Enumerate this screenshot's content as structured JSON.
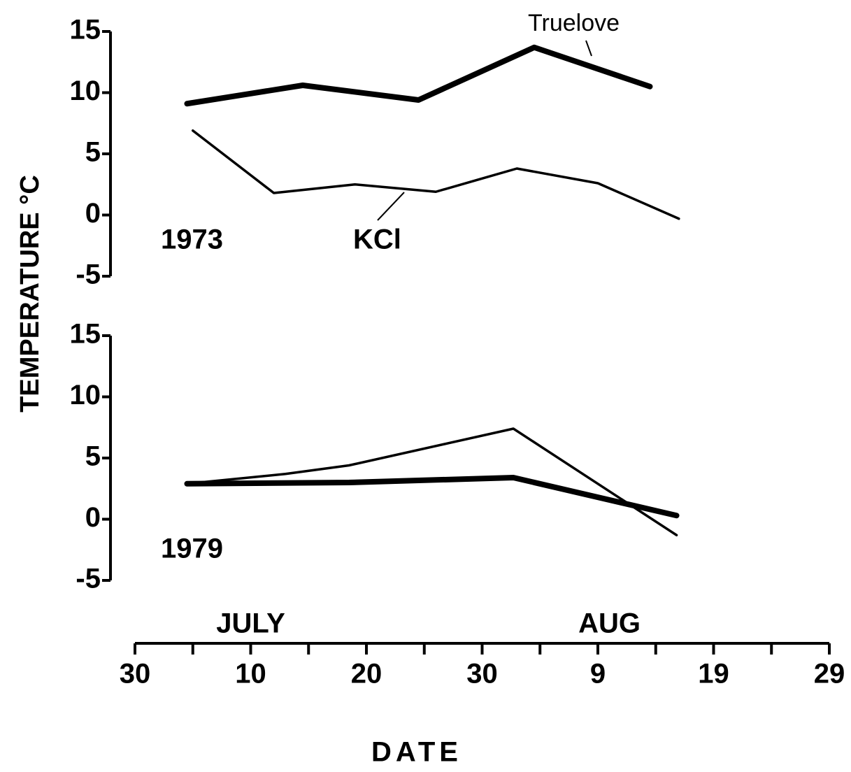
{
  "chart_data": [
    {
      "type": "line",
      "label": "1973",
      "ylabel": "TEMPERATURE °C",
      "ylim": [
        -5,
        15
      ],
      "yticks": [
        15,
        10,
        5,
        0,
        -5
      ],
      "series": [
        {
          "name": "Truelove",
          "color": "#000000",
          "width": "thick",
          "x": [
            4.5,
            14.5,
            24.5,
            34.5,
            44.5
          ],
          "values": [
            9.1,
            10.6,
            9.4,
            13.7,
            10.5
          ]
        },
        {
          "name": "KCl",
          "color": "#000000",
          "width": "thin",
          "x": [
            5,
            12,
            19,
            26,
            33,
            40,
            47
          ],
          "values": [
            6.9,
            1.8,
            2.5,
            1.9,
            3.8,
            2.6,
            -0.3
          ]
        }
      ]
    },
    {
      "type": "line",
      "label": "1979",
      "ylim": [
        -5,
        15
      ],
      "yticks": [
        15,
        10,
        5,
        0,
        -5
      ],
      "xlabel": "DATE",
      "xlim": [
        0,
        60
      ],
      "xticks": [
        {
          "value": 0,
          "label": "30"
        },
        10,
        20,
        30,
        {
          "value": 40,
          "label": "9"
        },
        {
          "value": 50,
          "label": "19"
        },
        {
          "value": 60,
          "label": "29"
        }
      ],
      "xminor": [
        5,
        15,
        25,
        35,
        45,
        55
      ],
      "months": [
        {
          "text": "JULY",
          "x": 10
        },
        {
          "text": "AUG",
          "x": 41
        }
      ],
      "series": [
        {
          "color": "#000000",
          "width": "thick",
          "x": [
            4.5,
            18.5,
            32.7,
            46.8
          ],
          "values": [
            2.9,
            3.0,
            3.4,
            0.3
          ]
        },
        {
          "color": "#000000",
          "width": "thin",
          "x": [
            4.5,
            13,
            18.5,
            32.7,
            46.8
          ],
          "values": [
            2.9,
            3.7,
            4.4,
            7.4,
            -1.3
          ]
        }
      ]
    }
  ]
}
